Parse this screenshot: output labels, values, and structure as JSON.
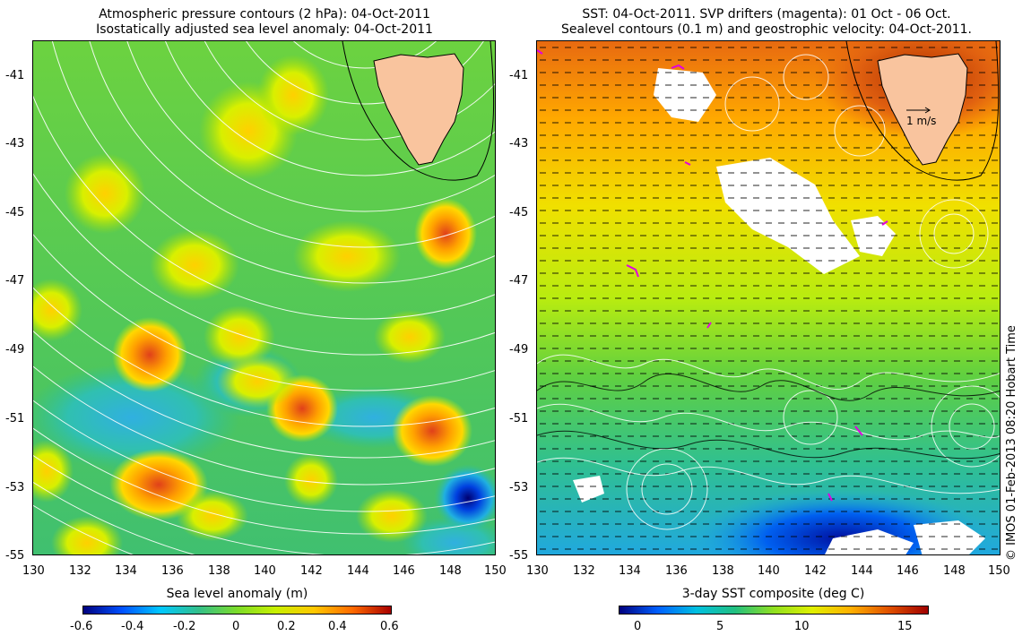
{
  "left_panel": {
    "title_line1": "Atmospheric pressure contours (2 hPa): 04-Oct-2011",
    "title_line2": "Isostatically adjusted sea level anomaly: 04-Oct-2011",
    "colorbar_label": "Sea level anomaly (m)",
    "colorbar_ticks": [
      "-0.6",
      "-0.4",
      "-0.2",
      "0",
      "0.2",
      "0.4",
      "0.6"
    ],
    "colorbar_values": [
      -0.6,
      -0.4,
      -0.2,
      0,
      0.2,
      0.4,
      0.6
    ]
  },
  "right_panel": {
    "title_line1": "SST: 04-Oct-2011. SVP drifters (magenta): 01 Oct - 06 Oct.",
    "title_line2": "Sealevel contours (0.1 m) and geostrophic velocity: 04-Oct-2011.",
    "colorbar_label": "3-day SST composite (deg C)",
    "colorbar_ticks": [
      "0",
      "5",
      "10",
      "15"
    ],
    "colorbar_values": [
      0,
      5,
      10,
      15
    ],
    "colorbar_range": [
      -2,
      17
    ],
    "velocity_scale_label": "1 m/s"
  },
  "axes": {
    "lat_labels": [
      "-41",
      "-43",
      "-45",
      "-47",
      "-49",
      "-51",
      "-53",
      "-55"
    ],
    "lon_labels": [
      "130",
      "132",
      "134",
      "136",
      "138",
      "140",
      "142",
      "144",
      "146",
      "148",
      "150"
    ],
    "lon_range": [
      130,
      150
    ],
    "lat_range": [
      -55,
      -40
    ]
  },
  "credit": "© IMOS 01-Feb-2013 08:20 Hobart Time",
  "colors": {
    "land": "#f9c49e",
    "sla_scale": [
      "#00007f",
      "#0050ff",
      "#00c8ff",
      "#33c08a",
      "#7cdc2a",
      "#c8f000",
      "#ffc800",
      "#ff6a00",
      "#a80000"
    ],
    "sst_scale": [
      "#00007f",
      "#0060ff",
      "#00c0e0",
      "#22c080",
      "#90e020",
      "#e0f000",
      "#ffb000",
      "#e05000",
      "#a00000"
    ]
  }
}
